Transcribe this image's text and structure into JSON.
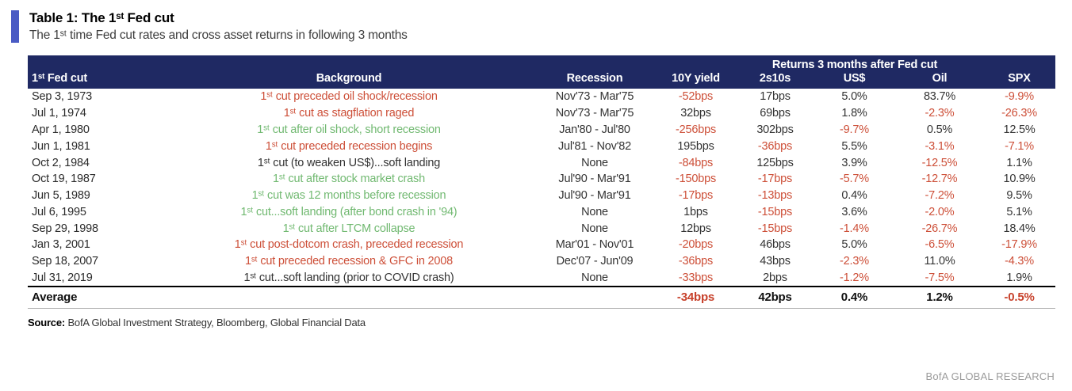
{
  "header": {
    "title": "Table 1: The 1ˢᵗ Fed cut",
    "subtitle": "The 1ˢᵗ time Fed cut rates and cross asset returns in following 3 months"
  },
  "chart_data": {
    "type": "table",
    "title": "Table 1: The 1ˢᵗ Fed cut",
    "group_header": "Returns 3 months after Fed cut",
    "group_span_columns": [
      "10Y yield",
      "2s10s",
      "US$",
      "Oil",
      "SPX"
    ],
    "columns": [
      "1ˢᵗ Fed cut",
      "Background",
      "Recession",
      "10Y yield",
      "2s10s",
      "US$",
      "Oil",
      "SPX"
    ],
    "rows": [
      {
        "date": "Sep 3, 1973",
        "background": "1ˢᵗ cut preceded oil shock/recession",
        "background_tone": "red",
        "recession": "Nov'73 - Mar'75",
        "yield_10y": "-52bps",
        "spread_2s10s": "17bps",
        "usd": "5.0%",
        "oil": "83.7%",
        "spx": "-9.9%"
      },
      {
        "date": "Jul 1, 1974",
        "background": "1ˢᵗ cut as stagflation raged",
        "background_tone": "red",
        "recession": "Nov'73 - Mar'75",
        "yield_10y": "32bps",
        "spread_2s10s": "69bps",
        "usd": "1.8%",
        "oil": "-2.3%",
        "spx": "-26.3%"
      },
      {
        "date": "Apr 1, 1980",
        "background": "1ˢᵗ cut after oil shock, short recession",
        "background_tone": "green",
        "recession": "Jan'80 - Jul'80",
        "yield_10y": "-256bps",
        "spread_2s10s": "302bps",
        "usd": "-9.7%",
        "oil": "0.5%",
        "spx": "12.5%"
      },
      {
        "date": "Jun 1, 1981",
        "background": "1ˢᵗ cut preceded recession begins",
        "background_tone": "red",
        "recession": "Jul'81 - Nov'82",
        "yield_10y": "195bps",
        "spread_2s10s": "-36bps",
        "usd": "5.5%",
        "oil": "-3.1%",
        "spx": "-7.1%"
      },
      {
        "date": "Oct 2, 1984",
        "background": "1ˢᵗ cut (to weaken US$)...soft landing",
        "background_tone": "dark",
        "recession": "None",
        "yield_10y": "-84bps",
        "spread_2s10s": "125bps",
        "usd": "3.9%",
        "oil": "-12.5%",
        "spx": "1.1%"
      },
      {
        "date": "Oct 19, 1987",
        "background": "1ˢᵗ cut after stock market crash",
        "background_tone": "green",
        "recession": "Jul'90 - Mar'91",
        "yield_10y": "-150bps",
        "spread_2s10s": "-17bps",
        "usd": "-5.7%",
        "oil": "-12.7%",
        "spx": "10.9%"
      },
      {
        "date": "Jun 5, 1989",
        "background": "1ˢᵗ cut was 12 months before recession",
        "background_tone": "green",
        "recession": "Jul'90 - Mar'91",
        "yield_10y": "-17bps",
        "spread_2s10s": "-13bps",
        "usd": "0.4%",
        "oil": "-7.2%",
        "spx": "9.5%"
      },
      {
        "date": "Jul 6, 1995",
        "background": "1ˢᵗ cut...soft landing (after bond crash in '94)",
        "background_tone": "green",
        "recession": "None",
        "yield_10y": "1bps",
        "spread_2s10s": "-15bps",
        "usd": "3.6%",
        "oil": "-2.0%",
        "spx": "5.1%"
      },
      {
        "date": "Sep 29, 1998",
        "background": "1ˢᵗ cut after LTCM collapse",
        "background_tone": "green",
        "recession": "None",
        "yield_10y": "12bps",
        "spread_2s10s": "-15bps",
        "usd": "-1.4%",
        "oil": "-26.7%",
        "spx": "18.4%"
      },
      {
        "date": "Jan 3, 2001",
        "background": "1ˢᵗ cut post-dotcom crash, preceded recession",
        "background_tone": "red",
        "recession": "Mar'01 - Nov'01",
        "yield_10y": "-20bps",
        "spread_2s10s": "46bps",
        "usd": "5.0%",
        "oil": "-6.5%",
        "spx": "-17.9%"
      },
      {
        "date": "Sep 18, 2007",
        "background": "1ˢᵗ cut preceded recession & GFC in 2008",
        "background_tone": "red",
        "recession": "Dec'07 - Jun'09",
        "yield_10y": "-36bps",
        "spread_2s10s": "43bps",
        "usd": "-2.3%",
        "oil": "11.0%",
        "spx": "-4.3%"
      },
      {
        "date": "Jul 31, 2019",
        "background": "1ˢᵗ cut...soft landing (prior to COVID crash)",
        "background_tone": "dark",
        "recession": "None",
        "yield_10y": "-33bps",
        "spread_2s10s": "2bps",
        "usd": "-1.2%",
        "oil": "-7.5%",
        "spx": "1.9%"
      }
    ],
    "average": {
      "label": "Average",
      "yield_10y": "-34bps",
      "spread_2s10s": "42bps",
      "usd": "0.4%",
      "oil": "1.2%",
      "spx": "-0.5%"
    }
  },
  "footer": {
    "source_label": "Source:",
    "source_text": "BofA Global Investment Strategy, Bloomberg, Global Financial Data",
    "brand": "BofA GLOBAL RESEARCH"
  },
  "colors": {
    "header_navy": "#1f2963",
    "negative_red": "#cd4f38",
    "positive_green": "#71b971",
    "accent_blue": "#4a5bc4",
    "text_dark": "#333333",
    "brand_gray": "#9b9b9b"
  }
}
